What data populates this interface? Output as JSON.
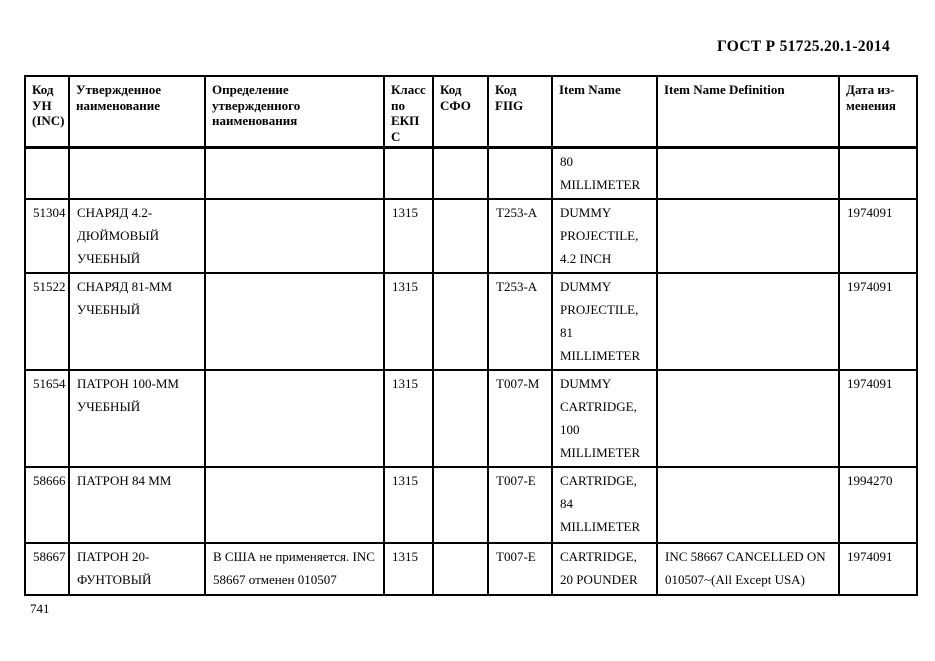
{
  "page": {
    "doc_ref": "ГОСТ Р 51725.20.1-2014",
    "page_number": "741"
  },
  "table": {
    "headers": [
      "Код УН (INC)",
      "Утвержденное наименование",
      "Определение утвержденного наименования",
      "Класс по ЕКПС",
      "Код СФО",
      "Код FIIG",
      "Item Name",
      "Item Name Definition",
      "Дата из-менения"
    ],
    "rows": [
      [
        "",
        "",
        "",
        "",
        "",
        "",
        "80 MILLIMETER",
        "",
        ""
      ],
      [
        "51304",
        "СНАРЯД 4.2-ДЮЙМОВЫЙ УЧЕБНЫЙ",
        "",
        "1315",
        "",
        "T253-A",
        "DUMMY PROJECTILE, 4.2 INCH",
        "",
        "1974091"
      ],
      [
        "51522",
        "СНАРЯД 81-ММ УЧЕБНЫЙ",
        "",
        "1315",
        "",
        "T253-A",
        "DUMMY PROJECTILE, 81 MILLIMETER",
        "",
        "1974091"
      ],
      [
        "51654",
        "ПАТРОН 100-ММ УЧЕБНЫЙ",
        "",
        "1315",
        "",
        "T007-M",
        "DUMMY CARTRIDGE, 100 MILLIMETER",
        "",
        "1974091"
      ],
      [
        "58666",
        "ПАТРОН 84 ММ",
        "",
        "1315",
        "",
        "T007-E",
        "CARTRIDGE, 84 MILLIMETER",
        "",
        "1994270"
      ],
      [
        "58667",
        "ПАТРОН 20-ФУНТОВЫЙ",
        "В США не применяется. INC 58667 отменен 010507",
        "1315",
        "",
        "T007-E",
        "CARTRIDGE, 20 POUNDER",
        "INC 58667 CANCELLED ON 010507~(All Except USA)",
        "1974091"
      ]
    ]
  }
}
